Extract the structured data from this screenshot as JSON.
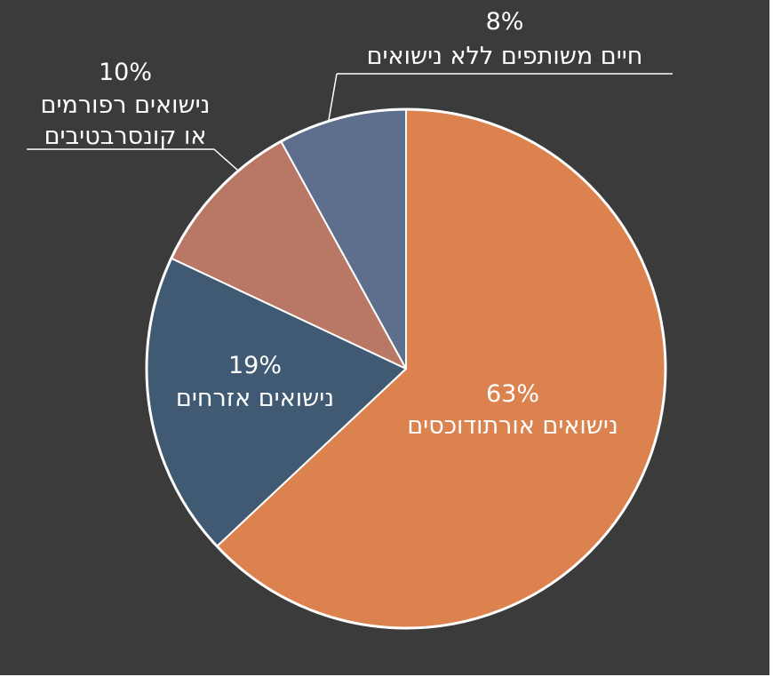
{
  "chart_data": {
    "type": "pie",
    "start_angle_deg": 0,
    "direction": "clockwise",
    "slices": [
      {
        "label_lines": [
          "נישואים אורתודוכסים"
        ],
        "value": 63,
        "percent_text": "63%",
        "color": "#dc824e"
      },
      {
        "label_lines": [
          "נישואים אזרחים"
        ],
        "value": 19,
        "percent_text": "19%",
        "color": "#3f5a72"
      },
      {
        "label_lines": [
          "נישואים רפורמים",
          "או קונסרבטיבים"
        ],
        "value": 10,
        "percent_text": "10%",
        "color": "#b97765"
      },
      {
        "label_lines": [
          "חיים משותפים ללא נישואים"
        ],
        "value": 8,
        "percent_text": "8%",
        "color": "#5d6f8c"
      }
    ]
  },
  "colors": {
    "background": "#3b3b3b",
    "outline": "#ffffff",
    "text": "#ffffff"
  }
}
